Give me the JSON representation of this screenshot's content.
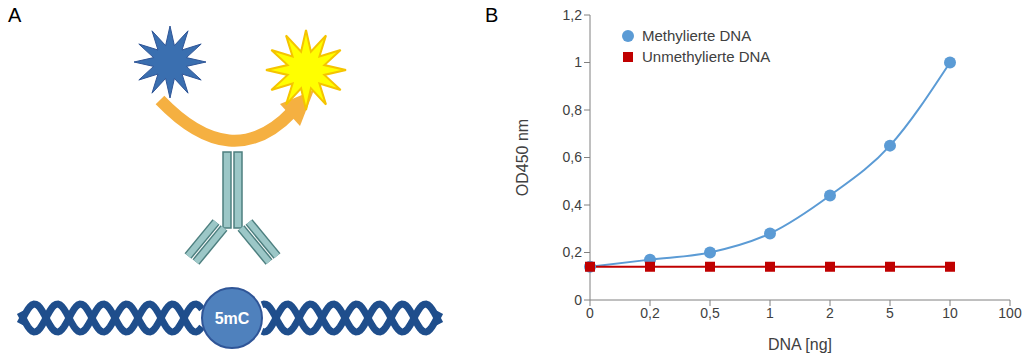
{
  "panel_letters": [
    "A",
    "B"
  ],
  "diagram": {
    "label": "5mC"
  },
  "chart_data": {
    "type": "line",
    "categories": [
      "0",
      "0,2",
      "0,5",
      "1",
      "2",
      "5",
      "10",
      "100"
    ],
    "series": [
      {
        "name": "Methylierte DNA",
        "color": "#5b9bd5",
        "marker": "circle",
        "values": [
          0.14,
          0.17,
          0.2,
          0.28,
          0.44,
          0.65,
          1.0,
          null
        ]
      },
      {
        "name": "Unmethylierte DNA",
        "color": "#c00000",
        "marker": "square",
        "values": [
          0.14,
          0.14,
          0.14,
          0.14,
          0.14,
          0.14,
          0.14,
          null
        ]
      }
    ],
    "xlabel": "DNA [ng]",
    "ylabel": "OD450 nm",
    "ylim": [
      0,
      1.2
    ],
    "yticks": [
      0,
      {
        "value": 0.2,
        "label": "0,2"
      },
      {
        "value": 0.4,
        "label": "0,4"
      },
      {
        "value": 0.6,
        "label": "0,6"
      },
      {
        "value": 0.8,
        "label": "0,8"
      },
      1,
      {
        "value": 1.2,
        "label": "1,2"
      }
    ],
    "legend": "upper left",
    "grid": false
  }
}
